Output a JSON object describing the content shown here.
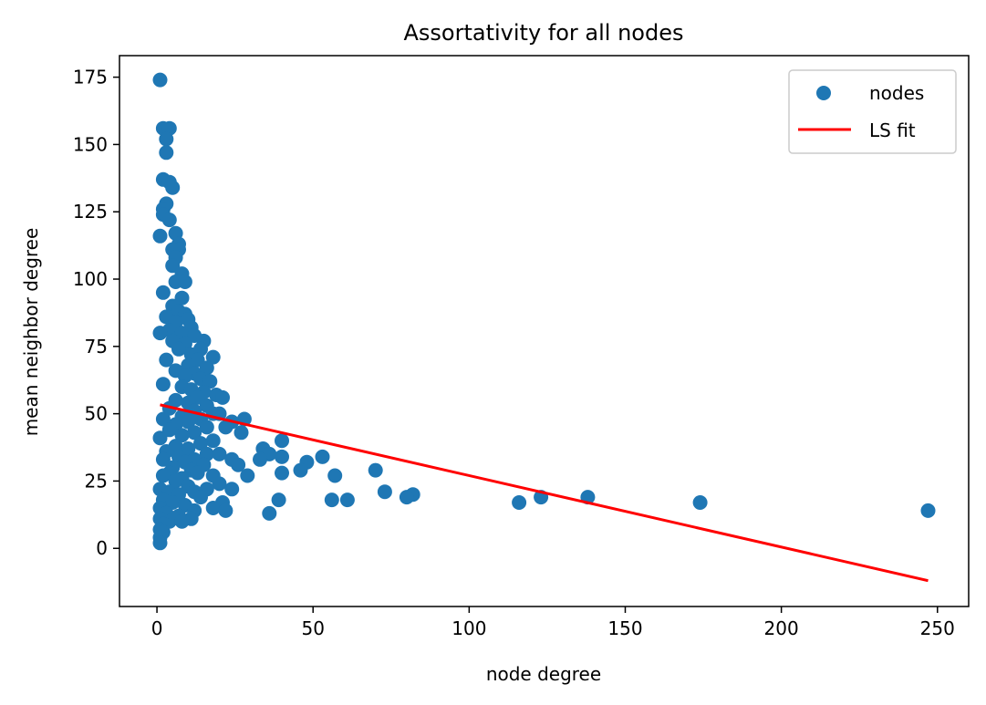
{
  "chart_data": {
    "type": "scatter",
    "title": "Assortativity for all nodes",
    "xlabel": "node degree",
    "ylabel": "mean neighbor degree",
    "xlim": [
      -12,
      260
    ],
    "ylim": [
      -21.6,
      183
    ],
    "xticks": [
      "0",
      "50",
      "100",
      "150",
      "200",
      "250"
    ],
    "yticks": [
      "0",
      "25",
      "50",
      "75",
      "100",
      "125",
      "150",
      "175"
    ],
    "grid": false,
    "legend": {
      "placement": "top-right",
      "entries": [
        {
          "label": "nodes",
          "kind": "marker"
        },
        {
          "label": "LS fit",
          "kind": "line"
        }
      ]
    },
    "colors": {
      "points": "#1f77b4",
      "fit": "#ff0000"
    },
    "series": [
      {
        "name": "nodes",
        "type": "scatter",
        "points": [
          [
            1,
            174
          ],
          [
            2,
            156
          ],
          [
            4,
            156
          ],
          [
            3,
            152
          ],
          [
            3,
            147
          ],
          [
            2,
            137
          ],
          [
            4,
            136
          ],
          [
            5,
            134
          ],
          [
            3,
            128
          ],
          [
            2,
            126
          ],
          [
            2,
            124
          ],
          [
            4,
            122
          ],
          [
            1,
            116
          ],
          [
            6,
            117
          ],
          [
            7,
            113
          ],
          [
            7,
            111
          ],
          [
            5,
            111
          ],
          [
            6,
            108
          ],
          [
            5,
            105
          ],
          [
            8,
            102
          ],
          [
            6,
            99
          ],
          [
            9,
            99
          ],
          [
            2,
            95
          ],
          [
            8,
            93
          ],
          [
            5,
            90
          ],
          [
            7,
            88
          ],
          [
            9,
            87
          ],
          [
            3,
            86
          ],
          [
            10,
            85
          ],
          [
            6,
            84
          ],
          [
            11,
            82
          ],
          [
            4,
            81
          ],
          [
            1,
            80
          ],
          [
            8,
            80
          ],
          [
            12,
            79
          ],
          [
            15,
            77
          ],
          [
            5,
            77
          ],
          [
            9,
            76
          ],
          [
            18,
            71
          ],
          [
            14,
            74
          ],
          [
            7,
            74
          ],
          [
            11,
            72
          ],
          [
            13,
            70
          ],
          [
            3,
            70
          ],
          [
            10,
            68
          ],
          [
            16,
            67
          ],
          [
            6,
            66
          ],
          [
            12,
            65
          ],
          [
            9,
            64
          ],
          [
            14,
            63
          ],
          [
            17,
            62
          ],
          [
            2,
            61
          ],
          [
            8,
            60
          ],
          [
            11,
            59
          ],
          [
            15,
            58
          ],
          [
            19,
            57
          ],
          [
            13,
            56
          ],
          [
            21,
            56
          ],
          [
            6,
            55
          ],
          [
            10,
            54
          ],
          [
            16,
            53
          ],
          [
            4,
            52
          ],
          [
            12,
            51
          ],
          [
            18,
            50
          ],
          [
            20,
            50
          ],
          [
            8,
            49
          ],
          [
            2,
            48
          ],
          [
            14,
            48
          ],
          [
            28,
            48
          ],
          [
            10,
            47
          ],
          [
            24,
            47
          ],
          [
            6,
            46
          ],
          [
            16,
            45
          ],
          [
            22,
            45
          ],
          [
            4,
            44
          ],
          [
            12,
            43
          ],
          [
            27,
            43
          ],
          [
            40,
            40
          ],
          [
            8,
            42
          ],
          [
            1,
            41
          ],
          [
            18,
            40
          ],
          [
            14,
            39
          ],
          [
            6,
            38
          ],
          [
            10,
            37
          ],
          [
            34,
            37
          ],
          [
            3,
            36
          ],
          [
            16,
            35
          ],
          [
            36,
            35
          ],
          [
            20,
            35
          ],
          [
            7,
            34
          ],
          [
            12,
            33
          ],
          [
            40,
            34
          ],
          [
            53,
            34
          ],
          [
            2,
            33
          ],
          [
            24,
            33
          ],
          [
            33,
            33
          ],
          [
            9,
            32
          ],
          [
            15,
            31
          ],
          [
            48,
            32
          ],
          [
            26,
            31
          ],
          [
            5,
            30
          ],
          [
            11,
            29
          ],
          [
            46,
            29
          ],
          [
            70,
            29
          ],
          [
            4,
            28
          ],
          [
            13,
            28
          ],
          [
            40,
            28
          ],
          [
            18,
            27
          ],
          [
            2,
            27
          ],
          [
            8,
            26
          ],
          [
            29,
            27
          ],
          [
            57,
            27
          ],
          [
            6,
            25
          ],
          [
            20,
            24
          ],
          [
            10,
            23
          ],
          [
            1,
            22
          ],
          [
            16,
            22
          ],
          [
            24,
            22
          ],
          [
            73,
            21
          ],
          [
            4,
            21
          ],
          [
            12,
            21
          ],
          [
            82,
            20
          ],
          [
            80,
            19
          ],
          [
            7,
            20
          ],
          [
            14,
            19
          ],
          [
            39,
            18
          ],
          [
            56,
            18
          ],
          [
            61,
            18
          ],
          [
            123,
            19
          ],
          [
            138,
            19
          ],
          [
            2,
            18
          ],
          [
            21,
            17
          ],
          [
            116,
            17
          ],
          [
            174,
            17
          ],
          [
            5,
            17
          ],
          [
            9,
            16
          ],
          [
            18,
            15
          ],
          [
            1,
            15
          ],
          [
            12,
            14
          ],
          [
            22,
            14
          ],
          [
            247,
            14
          ],
          [
            36,
            13
          ],
          [
            3,
            13
          ],
          [
            7,
            12
          ],
          [
            1,
            11
          ],
          [
            11,
            11
          ],
          [
            4,
            10
          ],
          [
            8,
            10
          ],
          [
            2,
            9
          ],
          [
            1,
            7
          ],
          [
            2,
            6
          ],
          [
            1,
            4
          ],
          [
            1,
            2
          ]
        ]
      }
    ],
    "fit_line": {
      "name": "LS fit",
      "start": [
        1,
        53.3
      ],
      "end": [
        247,
        -12
      ]
    }
  }
}
